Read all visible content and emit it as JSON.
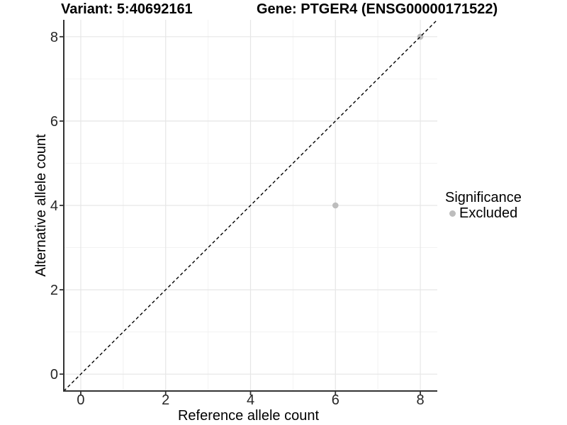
{
  "titles": {
    "variant": "Variant: 5:40692161",
    "gene": "Gene: PTGER4 (ENSG00000171522)"
  },
  "chart_data": {
    "type": "scatter",
    "xlabel": "Reference allele count",
    "ylabel": "Alternative allele count",
    "xlim": [
      -0.4,
      8.4
    ],
    "ylim": [
      -0.4,
      8.4
    ],
    "x_ticks": [
      0,
      2,
      4,
      6,
      8
    ],
    "y_ticks": [
      0,
      2,
      4,
      6,
      8
    ],
    "x_minor": [
      1,
      3,
      5,
      7
    ],
    "y_minor": [
      1,
      3,
      5,
      7
    ],
    "grid": "on",
    "series": [
      {
        "name": "Excluded",
        "color": "#bdbdbd",
        "points": [
          {
            "x": 6,
            "y": 4
          },
          {
            "x": 8,
            "y": 8
          }
        ]
      }
    ],
    "reference_line": {
      "type": "identity",
      "style": "dashed",
      "color": "#000000"
    },
    "legend": {
      "title": "Significance",
      "position": "right",
      "entries": [
        {
          "label": "Excluded",
          "color": "#bdbdbd"
        }
      ]
    }
  },
  "colors": {
    "axis": "#333333",
    "tick_label": "#262626",
    "axis_title": "#000000",
    "grid_major": "#e6e6e6",
    "grid_minor": "#f2f2f2"
  }
}
